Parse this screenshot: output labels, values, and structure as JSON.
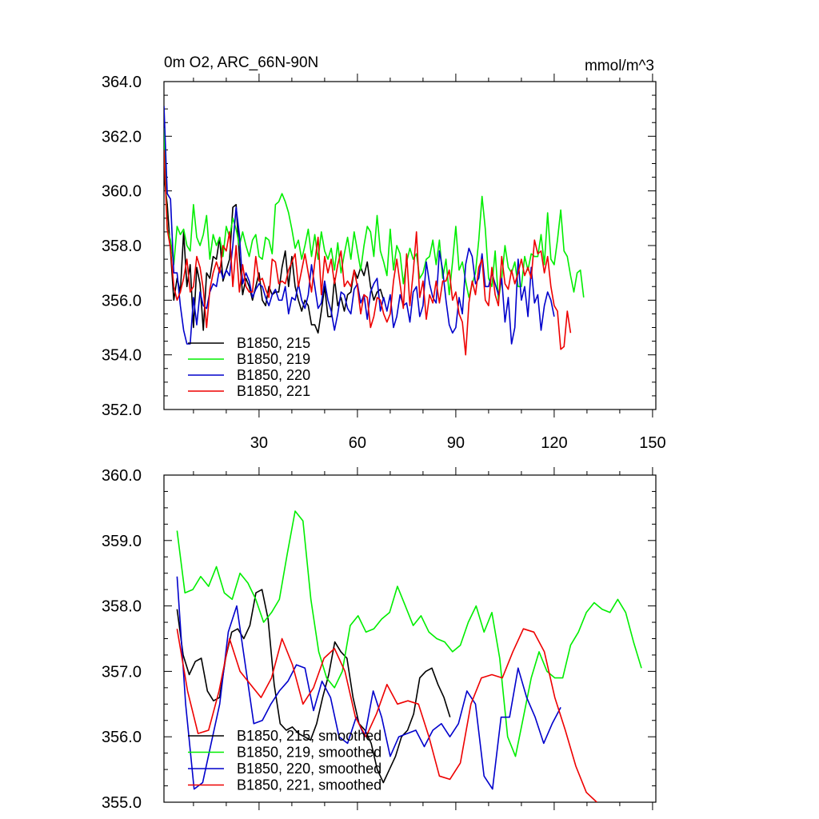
{
  "chart_data": [
    {
      "type": "line",
      "title": "0m O2, ARC_66N-90N",
      "units_label": "mmol/m^3",
      "xlim": [
        1,
        151
      ],
      "ylim": [
        352.0,
        364.0
      ],
      "x_ticks": [
        30,
        60,
        90,
        120,
        150
      ],
      "y_ticks": [
        "352.0",
        "354.0",
        "356.0",
        "358.0",
        "360.0",
        "362.0",
        "364.0"
      ],
      "legend_position": "lower-left",
      "series": [
        {
          "name": "B1850, 215",
          "color": "#000000",
          "x_start": 1,
          "values": [
            360.6,
            359.5,
            357.8,
            356.0,
            356.8,
            356.3,
            358.5,
            356.5,
            357.3,
            355.0,
            357.2,
            356.6,
            354.9,
            357.0,
            356.8,
            357.6,
            357.5,
            358.3,
            356.7,
            357.1,
            357.5,
            359.4,
            359.5,
            357.6,
            356.2,
            356.8,
            356.5,
            356.0,
            356.5,
            357.0,
            356.0,
            355.8,
            356.5,
            356.2,
            356.3,
            356.3,
            357.2,
            357.8,
            356.5,
            357.6,
            356.5,
            356.0,
            355.6,
            356.0,
            355.8,
            355.1,
            355.1,
            354.8,
            355.6,
            356.5,
            355.4,
            355.4,
            356.8,
            355.8,
            356.1,
            355.6,
            356.2,
            356.3,
            357.1,
            356.8,
            357.2,
            356.9,
            357.4,
            356.5,
            356.0,
            356.3,
            356.4,
            356.0
          ]
        },
        {
          "name": "B1850, 219",
          "color": "#00ee00",
          "x_start": 1,
          "values": [
            362.3,
            358.6,
            358.2,
            357.3,
            358.7,
            358.4,
            358.6,
            358.0,
            357.8,
            359.5,
            358.3,
            358.0,
            358.4,
            359.1,
            357.5,
            358.4,
            358.0,
            358.3,
            357.6,
            358.7,
            358.3,
            359.0,
            358.6,
            358.0,
            358.5,
            358.0,
            357.6,
            358.2,
            358.4,
            357.6,
            357.5,
            358.3,
            358.2,
            357.7,
            359.5,
            359.6,
            359.9,
            359.6,
            359.2,
            358.6,
            357.9,
            358.2,
            357.5,
            358.0,
            358.6,
            357.6,
            358.4,
            357.5,
            358.5,
            357.8,
            357.5,
            357.9,
            357.1,
            358.1,
            357.0,
            357.7,
            358.3,
            357.5,
            358.5,
            357.8,
            357.1,
            358.0,
            358.7,
            358.5,
            357.6,
            359.1,
            357.8,
            357.4,
            356.9,
            358.6,
            357.1,
            358.0,
            357.7,
            356.6,
            357.4,
            357.9,
            357.5,
            357.7,
            356.8,
            357.0,
            357.5,
            357.6,
            358.2,
            357.3,
            358.2,
            356.8,
            357.5,
            356.2,
            357.4,
            358.7,
            357.1,
            357.4,
            356.7,
            356.1,
            356.6,
            357.0,
            358.2,
            359.8,
            358.6,
            356.8,
            356.5,
            357.8,
            356.0,
            356.8,
            358.0,
            357.2,
            357.0,
            357.4,
            356.5,
            356.5,
            357.6,
            357.1,
            357.7,
            357.6,
            357.6,
            358.4,
            357.3,
            359.2,
            357.5,
            357.3,
            358.2,
            359.3,
            357.8,
            357.6,
            356.9,
            356.3,
            357.0,
            357.1,
            356.1
          ],
          "x_offset": 21
        },
        {
          "name": "B1850, 220",
          "color": "#0000cc",
          "x_start": 1,
          "values": [
            363.1,
            359.9,
            359.7,
            357.0,
            357.0,
            355.8,
            354.9,
            354.4,
            354.4,
            356.1,
            355.1,
            356.3,
            355.8,
            355.7,
            356.3,
            356.6,
            356.5,
            357.2,
            356.8,
            357.1,
            356.9,
            358.0,
            359.4,
            358.4,
            356.6,
            357.0,
            356.7,
            356.1,
            356.4,
            356.6,
            356.5,
            356.1,
            355.8,
            356.2,
            356.4,
            356.0,
            356.0,
            356.5,
            355.5,
            356.1,
            356.0,
            356.6,
            356.0,
            355.7,
            356.2,
            357.3,
            356.5,
            355.7,
            355.9,
            356.7,
            356.0,
            355.6,
            354.9,
            355.5,
            356.3,
            356.2,
            355.7,
            355.5,
            356.4,
            356.6,
            355.9,
            356.2,
            355.3,
            356.3,
            356.6,
            356.8,
            355.6,
            356.1,
            355.6,
            356.2,
            355.0,
            355.4,
            356.2,
            355.8,
            355.9,
            355.2,
            356.3,
            356.5,
            355.4,
            355.8,
            357.4,
            356.6,
            356.1,
            355.9,
            357.8,
            357.1,
            356.0,
            355.1,
            354.8,
            355.0,
            356.1,
            355.5,
            357.3,
            357.9,
            357.6,
            356.6,
            356.8,
            357.7,
            356.5,
            356.5,
            357.0,
            356.6,
            356.2,
            356.8,
            355.2,
            356.1,
            354.4,
            355.0,
            357.5,
            356.0,
            356.5,
            355.4,
            357.2,
            355.9,
            356.2,
            354.9,
            355.8,
            356.3,
            356.0,
            355.4
          ],
          "x_offset": 13
        },
        {
          "name": "B1850, 221",
          "color": "#ee0000",
          "x_start": 1,
          "values": [
            361.5,
            358.6,
            357.9,
            356.5,
            356.0,
            356.3,
            356.8,
            357.5,
            356.3,
            356.5,
            357.6,
            357.2,
            356.4,
            355.0,
            356.4,
            357.0,
            357.4,
            357.0,
            358.0,
            357.8,
            358.5,
            356.5,
            358.0,
            356.3,
            357.3,
            356.5,
            356.3,
            356.3,
            357.6,
            356.7,
            356.8,
            356.4,
            356.1,
            357.5,
            357.4,
            356.6,
            356.7,
            356.6,
            357.1,
            357.4,
            357.7,
            356.5,
            357.1,
            357.7,
            357.0,
            356.3,
            357.4,
            358.3,
            356.2,
            357.6,
            357.0,
            357.5,
            356.6,
            357.3,
            357.8,
            356.5,
            356.7,
            356.5,
            357.1,
            356.5,
            355.5,
            356.2,
            356.1,
            355.0,
            355.4,
            356.1,
            356.0,
            355.5,
            355.2,
            355.5,
            356.7,
            357.5,
            356.6,
            355.7,
            357.7,
            355.8,
            357.0,
            358.5,
            356.1,
            356.7,
            355.3,
            356.2,
            355.9,
            356.7,
            355.9,
            356.7,
            356.7,
            357.1,
            356.0,
            356.3,
            355.5,
            355.2,
            354.0,
            355.9,
            356.7,
            356.2,
            357.2,
            357.5,
            356.0,
            355.8,
            357.2,
            356.2,
            355.8,
            357.6,
            356.6,
            356.4,
            357.1,
            356.6,
            357.0,
            357.5,
            356.9,
            357.2,
            356.8,
            358.2,
            357.7,
            357.8,
            357.0,
            357.6,
            356.5,
            355.8,
            355.6,
            354.2,
            354.3,
            355.6,
            354.8
          ],
          "x_offset": 2
        }
      ]
    },
    {
      "type": "line",
      "xlim": [
        1,
        151
      ],
      "ylim": [
        355.0,
        360.0
      ],
      "x_ticks": [
        30,
        60,
        90,
        120,
        150
      ],
      "y_ticks": [
        "355.0",
        "356.0",
        "357.0",
        "358.0",
        "359.0",
        "360.0"
      ],
      "legend_position": "lower-left",
      "series": [
        {
          "name": "B1850, 215, smoothed",
          "color": "#000000",
          "x_start": 5,
          "values": [
            357.95,
            357.25,
            356.95,
            357.15,
            357.2,
            356.7,
            356.55,
            356.6,
            357.2,
            357.6,
            357.65,
            357.5,
            357.7,
            358.2,
            358.25,
            357.8,
            356.8,
            356.2,
            356.1,
            356.15,
            356.05,
            356.0,
            355.95,
            356.2,
            356.6,
            356.95,
            357.45,
            357.3,
            357.2,
            356.6,
            356.2,
            356.1,
            355.9,
            355.5,
            355.3,
            355.5,
            355.7,
            356.0,
            356.1,
            356.35,
            356.9,
            357.0,
            357.05,
            356.8,
            356.6,
            356.3
          ],
          "x_step": 1.85
        },
        {
          "name": "B1850, 219, smoothed",
          "color": "#00ee00",
          "x_start": 5,
          "values": [
            359.15,
            358.2,
            358.25,
            358.45,
            358.3,
            358.6,
            358.2,
            358.1,
            358.5,
            358.35,
            358.1,
            357.75,
            357.9,
            358.1,
            358.8,
            359.45,
            359.3,
            358.1,
            357.3,
            356.9,
            356.75,
            357.0,
            357.7,
            357.85,
            357.6,
            357.65,
            357.8,
            357.9,
            358.3,
            358.0,
            357.7,
            357.85,
            357.6,
            357.5,
            357.45,
            357.3,
            357.4,
            357.75,
            358.0,
            357.6,
            357.9,
            357.2,
            356.0,
            355.7,
            356.3,
            356.9,
            357.3,
            357.0,
            356.9,
            356.9,
            357.4,
            357.6,
            357.9,
            358.05,
            357.95,
            357.9,
            358.1,
            357.9,
            357.45,
            357.05
          ],
          "x_step": 2.4
        },
        {
          "name": "B1850, 220, smoothed",
          "color": "#0000cc",
          "x_start": 5,
          "values": [
            358.45,
            356.5,
            355.2,
            355.3,
            355.9,
            356.5,
            357.6,
            358.0,
            357.1,
            356.2,
            356.25,
            356.5,
            356.7,
            356.85,
            357.1,
            357.05,
            356.4,
            356.85,
            356.6,
            356.0,
            355.9,
            356.3,
            356.0,
            356.7,
            356.3,
            355.7,
            356.0,
            356.05,
            356.1,
            355.85,
            356.1,
            356.2,
            356.0,
            356.2,
            356.7,
            356.5,
            355.4,
            355.2,
            356.3,
            356.3,
            357.05,
            356.6,
            356.3,
            355.9,
            356.2,
            356.45
          ],
          "x_step": 2.6
        },
        {
          "name": "B1850, 221, smoothed",
          "color": "#ee0000",
          "x_start": 5,
          "values": [
            357.65,
            356.7,
            356.05,
            356.1,
            356.7,
            357.5,
            357.0,
            356.8,
            356.6,
            356.9,
            357.5,
            357.1,
            356.5,
            356.75,
            357.2,
            357.35,
            357.0,
            356.3,
            356.0,
            356.35,
            356.8,
            356.5,
            356.55,
            356.5,
            356.0,
            355.4,
            355.35,
            355.6,
            356.5,
            356.9,
            356.95,
            356.9,
            357.3,
            357.65,
            357.6,
            357.3,
            356.6,
            356.1,
            355.55,
            355.15,
            355.0
          ],
          "x_step": 3.2
        }
      ]
    }
  ]
}
